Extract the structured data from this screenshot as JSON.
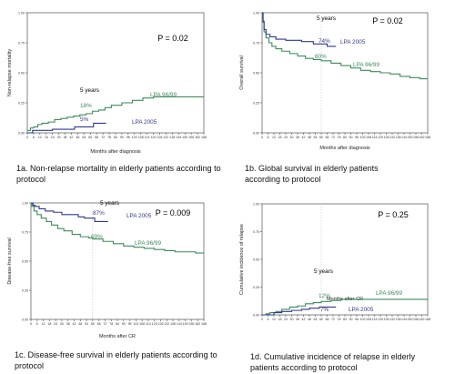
{
  "chart_data": [
    {
      "id": "1a",
      "type": "line",
      "caption": "1a. Non-relapse  mortality in elderly patients according to protocol",
      "xlabel": "Months after diagnosis",
      "ylabel": "Non-relapse  mortality",
      "xlim": [
        0,
        168
      ],
      "ylim": [
        0,
        1
      ],
      "x_ticks": [
        0,
        6,
        12,
        18,
        24,
        30,
        36,
        42,
        48,
        54,
        60,
        66,
        72,
        78,
        84,
        90,
        96,
        102,
        108,
        114,
        120,
        126,
        132,
        138,
        144,
        150,
        156,
        162,
        168
      ],
      "y_ticks": [
        "0.00",
        "0.25",
        "0.50",
        "0.75",
        "1.00"
      ],
      "p_value": "P = 0.02",
      "annotations": {
        "years": "5 years",
        "pct_series1": "18%",
        "pct_series2": "5%"
      },
      "series": [
        {
          "name": "LPA 96/99",
          "color": "#3f8b5c",
          "x": [
            0,
            3,
            6,
            10,
            14,
            20,
            26,
            32,
            38,
            44,
            50,
            56,
            62,
            68,
            74,
            80,
            90,
            100,
            110,
            120,
            140,
            168
          ],
          "y": [
            0.02,
            0.04,
            0.05,
            0.07,
            0.08,
            0.09,
            0.11,
            0.12,
            0.13,
            0.14,
            0.15,
            0.16,
            0.18,
            0.19,
            0.21,
            0.23,
            0.25,
            0.27,
            0.29,
            0.3,
            0.3,
            0.3
          ]
        },
        {
          "name": "LPA 2005",
          "color": "#2e3a8c",
          "x": [
            0,
            5,
            10,
            24,
            40,
            45,
            60,
            63,
            75
          ],
          "y": [
            0.0,
            0.02,
            0.02,
            0.03,
            0.03,
            0.05,
            0.05,
            0.08,
            0.08
          ]
        }
      ]
    },
    {
      "id": "1b",
      "type": "line",
      "caption": "1b. Global survival  in elderly patients according to protocol",
      "xlabel": "Months after diagnosis",
      "ylabel": "Overall survival",
      "xlim": [
        0,
        168
      ],
      "ylim": [
        0,
        1
      ],
      "x_ticks": [
        0,
        6,
        12,
        18,
        24,
        30,
        36,
        42,
        48,
        54,
        60,
        66,
        72,
        78,
        84,
        90,
        96,
        102,
        108,
        114,
        120,
        126,
        132,
        138,
        144,
        150,
        156,
        162,
        168
      ],
      "y_ticks": [
        "0.00",
        "0.25",
        "0.50",
        "0.75",
        "1.00"
      ],
      "p_value": "P = 0.02",
      "annotations": {
        "years": "5 years",
        "pct_series1": "60%",
        "pct_series2": "74%"
      },
      "series": [
        {
          "name": "LPA 96/99",
          "color": "#3f8b5c",
          "x": [
            0,
            1,
            2,
            4,
            7,
            10,
            14,
            20,
            28,
            36,
            44,
            52,
            60,
            70,
            80,
            90,
            100,
            110,
            120,
            130,
            140,
            150,
            160,
            168
          ],
          "y": [
            1.0,
            0.92,
            0.84,
            0.79,
            0.75,
            0.72,
            0.7,
            0.68,
            0.66,
            0.64,
            0.62,
            0.61,
            0.6,
            0.58,
            0.56,
            0.54,
            0.52,
            0.51,
            0.5,
            0.49,
            0.47,
            0.46,
            0.45,
            0.45
          ]
        },
        {
          "name": "LPA 2005",
          "color": "#2e3a8c",
          "x": [
            0,
            1,
            2,
            4,
            8,
            14,
            24,
            40,
            52,
            60,
            66,
            75
          ],
          "y": [
            1.0,
            0.93,
            0.86,
            0.82,
            0.8,
            0.78,
            0.77,
            0.76,
            0.74,
            0.74,
            0.72,
            0.72
          ]
        }
      ]
    },
    {
      "id": "1c",
      "type": "line",
      "caption": "1c. Disease-free  survival  in elderly patients according to protocol",
      "xlabel": "Months after CR",
      "ylabel": "Disease-free survival",
      "xlim": [
        0,
        168
      ],
      "ylim": [
        0,
        1
      ],
      "x_ticks": [
        0,
        6,
        12,
        18,
        24,
        30,
        36,
        42,
        48,
        54,
        60,
        66,
        72,
        78,
        84,
        90,
        96,
        102,
        108,
        114,
        120,
        126,
        132,
        138,
        144,
        150,
        156,
        162,
        168
      ],
      "y_ticks": [
        "0.00",
        "0.25",
        "0.50",
        "0.75",
        "1.00"
      ],
      "p_value": "P = 0.009",
      "annotations": {
        "years": "5 years",
        "pct_series1": "69%",
        "pct_series2": "87%"
      },
      "series": [
        {
          "name": "LPA 96/99",
          "color": "#3f8b5c",
          "x": [
            0,
            1,
            3,
            6,
            10,
            15,
            20,
            26,
            32,
            40,
            48,
            56,
            60,
            70,
            80,
            90,
            100,
            110,
            120,
            130,
            140,
            150,
            160,
            168
          ],
          "y": [
            1.0,
            0.97,
            0.93,
            0.9,
            0.87,
            0.84,
            0.81,
            0.78,
            0.76,
            0.73,
            0.71,
            0.7,
            0.69,
            0.67,
            0.65,
            0.63,
            0.62,
            0.61,
            0.6,
            0.59,
            0.58,
            0.58,
            0.57,
            0.57
          ]
        },
        {
          "name": "LPA 2005",
          "color": "#2e3a8c",
          "x": [
            0,
            2,
            4,
            8,
            14,
            22,
            30,
            38,
            46,
            52,
            60,
            62,
            75
          ],
          "y": [
            1.0,
            0.98,
            0.97,
            0.95,
            0.93,
            0.92,
            0.9,
            0.9,
            0.88,
            0.87,
            0.87,
            0.84,
            0.84
          ]
        }
      ]
    },
    {
      "id": "1d",
      "type": "line",
      "caption": "1d. Cumulative  incidence of relapse  in elderly patients according to protocol",
      "xlabel": "Months after CR",
      "ylabel": "Cumulative incidence of relapse",
      "xlim": [
        0,
        168
      ],
      "ylim": [
        0,
        1
      ],
      "x_ticks": [
        0,
        6,
        12,
        18,
        24,
        30,
        36,
        42,
        48,
        54,
        60,
        66,
        72,
        78,
        84,
        90,
        96,
        102,
        108,
        114,
        120,
        126,
        132,
        138,
        144,
        150,
        156,
        162,
        168
      ],
      "y_ticks": [
        "0.00",
        "0.25",
        "0.50",
        "0.75",
        "1.00"
      ],
      "p_value": "P = 0.25",
      "annotations": {
        "years": "5 years",
        "pct_series1": "12%",
        "pct_series2": "7%"
      },
      "series": [
        {
          "name": "LPA 96/99",
          "color": "#3f8b5c",
          "x": [
            0,
            4,
            8,
            14,
            20,
            28,
            36,
            44,
            52,
            60,
            70,
            80,
            90,
            168
          ],
          "y": [
            0.0,
            0.01,
            0.02,
            0.03,
            0.05,
            0.07,
            0.08,
            0.1,
            0.11,
            0.12,
            0.13,
            0.14,
            0.14,
            0.14
          ]
        },
        {
          "name": "LPA 2005",
          "color": "#2e3a8c",
          "x": [
            0,
            6,
            12,
            20,
            30,
            40,
            48,
            58,
            60,
            75
          ],
          "y": [
            0.0,
            0.0,
            0.02,
            0.03,
            0.04,
            0.05,
            0.06,
            0.07,
            0.07,
            0.07
          ]
        }
      ]
    }
  ]
}
